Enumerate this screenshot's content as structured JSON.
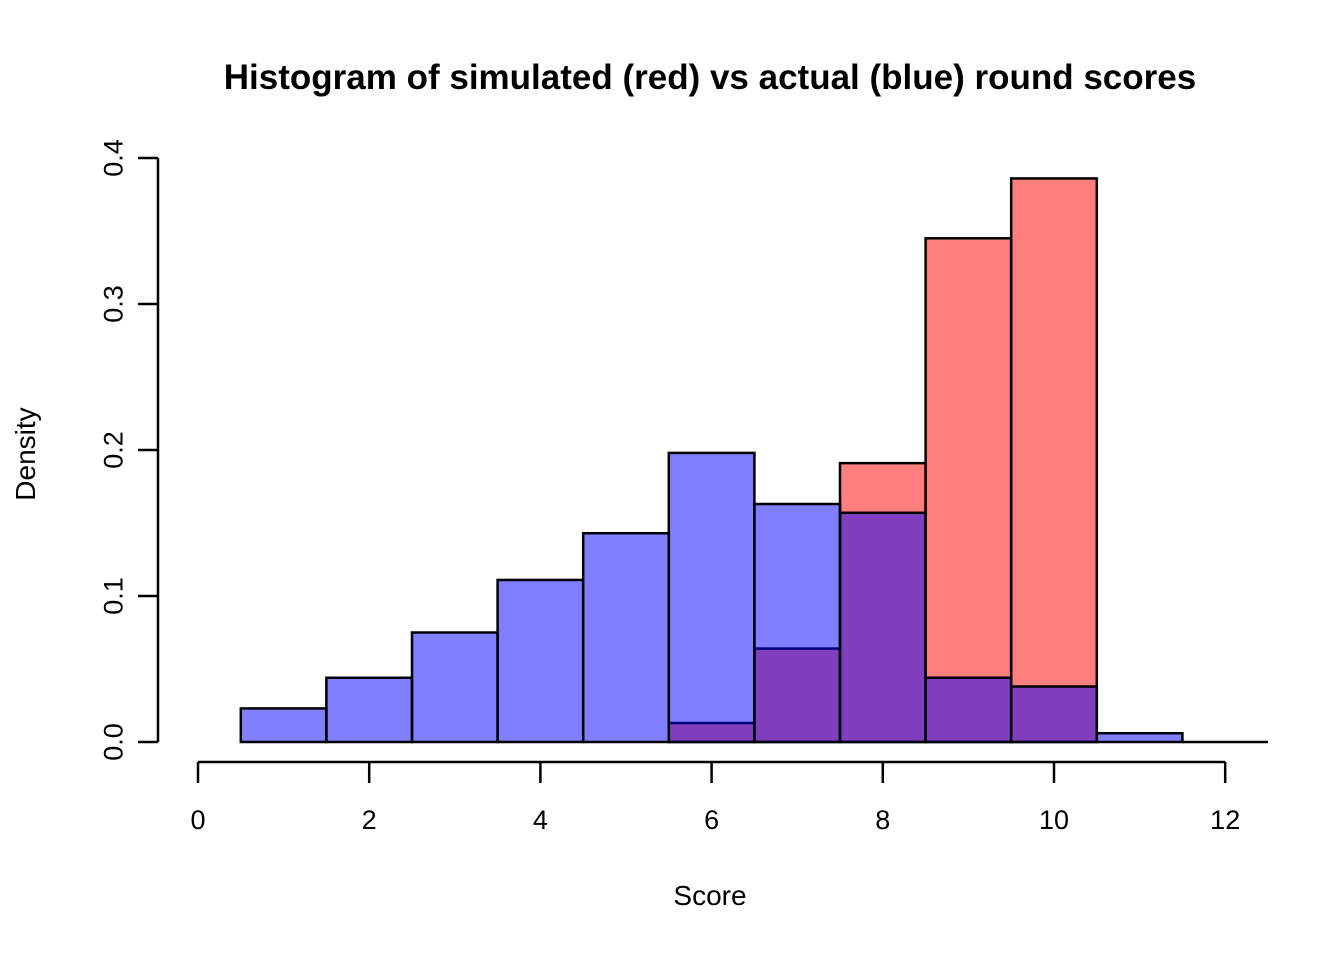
{
  "chart_data": {
    "type": "bar",
    "subtype": "overlaid-histograms",
    "title": "Histogram of simulated (red) vs actual (blue) round scores",
    "xlabel": "Score",
    "ylabel": "Density",
    "xlim": [
      0,
      12.5
    ],
    "ylim": [
      0,
      0.4
    ],
    "grid": false,
    "legend": "none",
    "bin_width": 1,
    "x_axis": {
      "ticks": [
        0,
        2,
        4,
        6,
        8,
        10,
        12
      ],
      "tick_labels": [
        "0",
        "2",
        "4",
        "6",
        "8",
        "10",
        "12"
      ]
    },
    "y_axis": {
      "ticks": [
        0,
        0.1,
        0.2,
        0.3,
        0.4
      ],
      "tick_labels": [
        "0.0",
        "0.1",
        "0.2",
        "0.3",
        "0.4"
      ]
    },
    "series": [
      {
        "name": "simulated",
        "legend_hint": "red",
        "fill": "rgba(255,0,0,0.5)",
        "fill_hex_on_white": "#FF8080",
        "border": "#000000",
        "bin_start": [
          5.5,
          6.5,
          7.5,
          8.5,
          9.5
        ],
        "density": [
          0.013,
          0.064,
          0.191,
          0.345,
          0.386
        ]
      },
      {
        "name": "actual",
        "legend_hint": "blue",
        "fill": "rgba(0,0,255,0.5)",
        "fill_hex_on_white": "#8080FF",
        "border": "#000000",
        "bin_start": [
          0.5,
          1.5,
          2.5,
          3.5,
          4.5,
          5.5,
          6.5,
          7.5,
          8.5,
          9.5,
          10.5,
          11.5
        ],
        "density": [
          0.023,
          0.044,
          0.075,
          0.111,
          0.143,
          0.198,
          0.163,
          0.157,
          0.044,
          0.038,
          0.006,
          0
        ]
      }
    ],
    "overlap_color_hex": "#8040C0",
    "hidden_border_color_hex": "#000080"
  }
}
